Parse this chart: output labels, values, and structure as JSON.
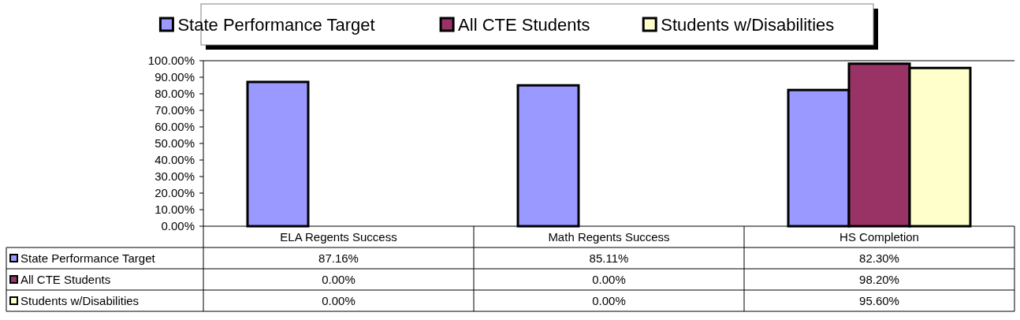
{
  "chart_data": {
    "type": "bar",
    "categories": [
      "ELA Regents Success",
      "Math Regents Success",
      "HS Completion"
    ],
    "series": [
      {
        "name": "State Performance Target",
        "color": "#9999ff",
        "values": [
          87.16,
          85.11,
          82.3
        ],
        "value_labels": [
          "87.16%",
          "85.11%",
          "82.30%"
        ]
      },
      {
        "name": "All CTE Students",
        "color": "#993366",
        "values": [
          0,
          0,
          98.2
        ],
        "value_labels": [
          "0.00%",
          "0.00%",
          "98.20%"
        ]
      },
      {
        "name": "Students w/Disabilities",
        "color": "#ffffcc",
        "values": [
          0,
          0,
          95.6
        ],
        "value_labels": [
          "0.00%",
          "0.00%",
          "95.60%"
        ]
      }
    ],
    "ylim": [
      0,
      100
    ],
    "yticks": [
      {
        "value": 0,
        "label": "0.00%"
      },
      {
        "value": 10,
        "label": "10.00%"
      },
      {
        "value": 20,
        "label": "20.00%"
      },
      {
        "value": 30,
        "label": "30.00%"
      },
      {
        "value": 40,
        "label": "40.00%"
      },
      {
        "value": 50,
        "label": "50.00%"
      },
      {
        "value": 60,
        "label": "60.00%"
      },
      {
        "value": 70,
        "label": "70.00%"
      },
      {
        "value": 80,
        "label": "80.00%"
      },
      {
        "value": 90,
        "label": "90.00%"
      },
      {
        "value": 100,
        "label": "100.00%"
      }
    ],
    "grid": false,
    "legend": "top"
  }
}
